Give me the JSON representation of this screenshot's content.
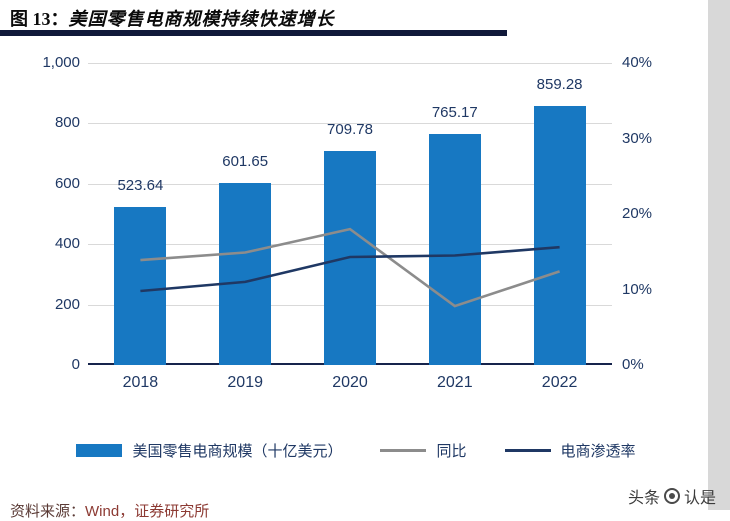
{
  "header": {
    "title_prefix": "图 13：",
    "title_text": "美国零售电商规模持续快速增长"
  },
  "chart_data": {
    "type": "bar",
    "title": "美国零售电商规模持续快速增长",
    "categories": [
      "2018",
      "2019",
      "2020",
      "2021",
      "2022"
    ],
    "bar_series": {
      "name": "美国零售电商规模（十亿美元）",
      "values": [
        523.64,
        601.65,
        709.78,
        765.17,
        859.28
      ],
      "data_labels": [
        "523.64",
        "601.65",
        "709.78",
        "765.17",
        "859.28"
      ],
      "axis": "left"
    },
    "line_series": [
      {
        "name": "同比",
        "values": [
          13.9,
          14.9,
          18.0,
          7.8,
          12.4
        ],
        "unit": "%",
        "color_key": "gray_line",
        "axis": "right"
      },
      {
        "name": "电商渗透率",
        "values": [
          9.8,
          11.0,
          14.3,
          14.5,
          15.6
        ],
        "unit": "%",
        "color_key": "navy_line",
        "axis": "right"
      }
    ],
    "left_axis": {
      "min": 0,
      "max": 1000,
      "ticks": [
        {
          "label": "1,000",
          "value": 1000
        },
        {
          "label": "800",
          "value": 800
        },
        {
          "label": "600",
          "value": 600
        },
        {
          "label": "400",
          "value": 400
        },
        {
          "label": "200",
          "value": 200
        },
        {
          "label": "0",
          "value": 0
        }
      ]
    },
    "right_axis": {
      "min": 0,
      "max": 40,
      "ticks": [
        {
          "label": "40%",
          "value": 40
        },
        {
          "label": "30%",
          "value": 30
        },
        {
          "label": "20%",
          "value": 20
        },
        {
          "label": "10%",
          "value": 10
        },
        {
          "label": "0%",
          "value": 0
        }
      ]
    },
    "grid": true,
    "legend_position": "bottom"
  },
  "legend": {
    "items": [
      {
        "label": "美国零售电商规模（十亿美元）",
        "type": "bar"
      },
      {
        "label": "同比",
        "type": "line"
      },
      {
        "label": "电商渗透率",
        "type": "line"
      }
    ]
  },
  "footer": {
    "source_prefix": "资料来源：",
    "source_body": "Wind，证券研究所",
    "watermark_prefix": "头条",
    "watermark_suffix": "认是"
  },
  "colors": {
    "bar": "#1778C2",
    "gray_line": "#8C8C8C",
    "navy_line": "#1F3864",
    "axis_text": "#1F3864",
    "grid": "#D9D9D9",
    "baseline": "#16244C",
    "title_rule": "#10193A"
  }
}
